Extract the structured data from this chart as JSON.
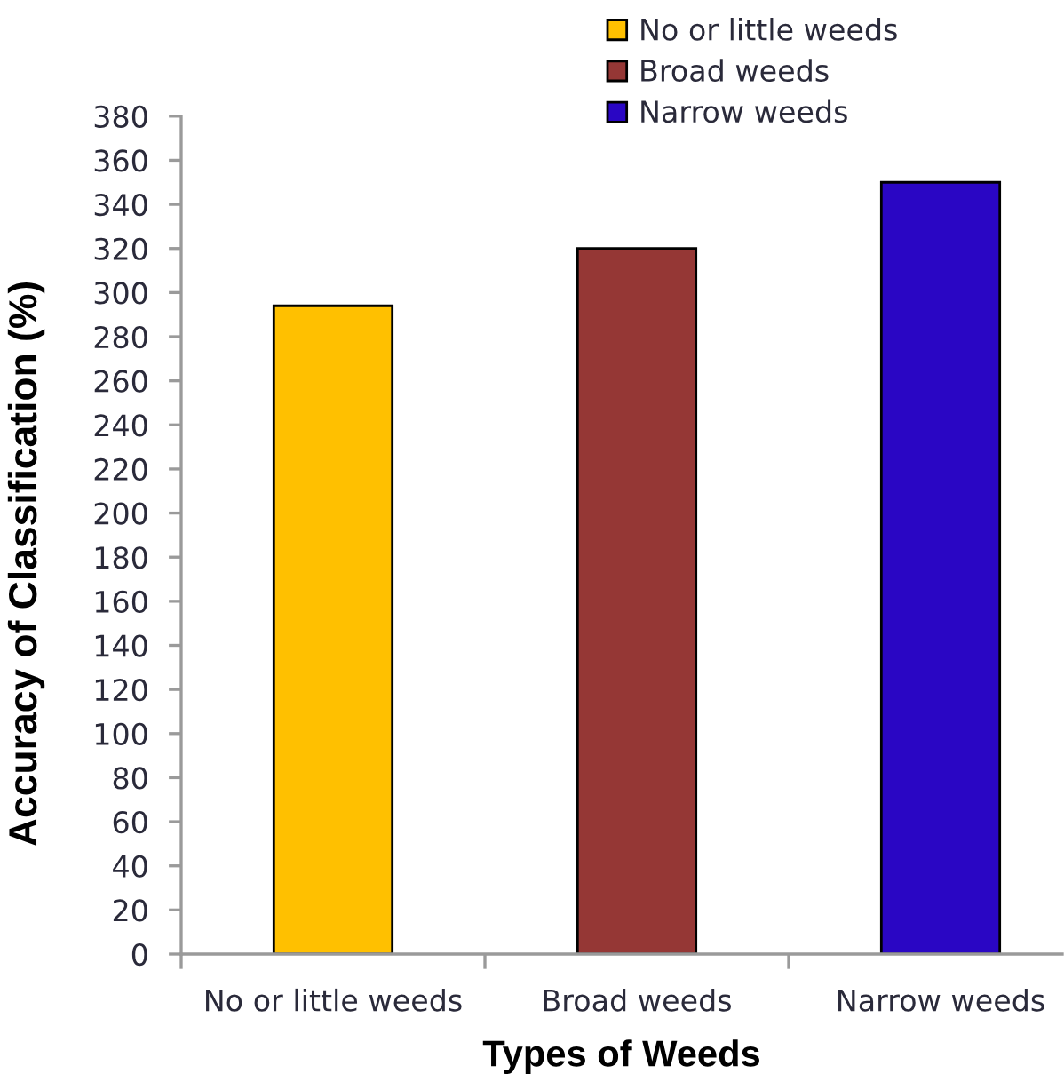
{
  "chart_data": {
    "type": "bar",
    "xlabel": "Types of Weeds",
    "ylabel": "Accuracy of Classification (%)",
    "categories": [
      "No or little weeds",
      "Broad weeds",
      "Narrow weeds"
    ],
    "series": [
      {
        "name": "No or little weeds",
        "color": "#ffc000",
        "values": [
          294,
          null,
          null
        ]
      },
      {
        "name": "Broad weeds",
        "color": "#953735",
        "values": [
          null,
          320,
          null
        ]
      },
      {
        "name": "Narrow weeds",
        "color": "#2a06c4",
        "values": [
          null,
          null,
          350
        ]
      }
    ],
    "stacked": true,
    "ylim": [
      0,
      380
    ],
    "yticks": [
      0,
      20,
      40,
      60,
      80,
      100,
      120,
      140,
      160,
      180,
      200,
      220,
      240,
      260,
      280,
      300,
      320,
      340,
      360,
      380
    ],
    "legend": "top right"
  }
}
